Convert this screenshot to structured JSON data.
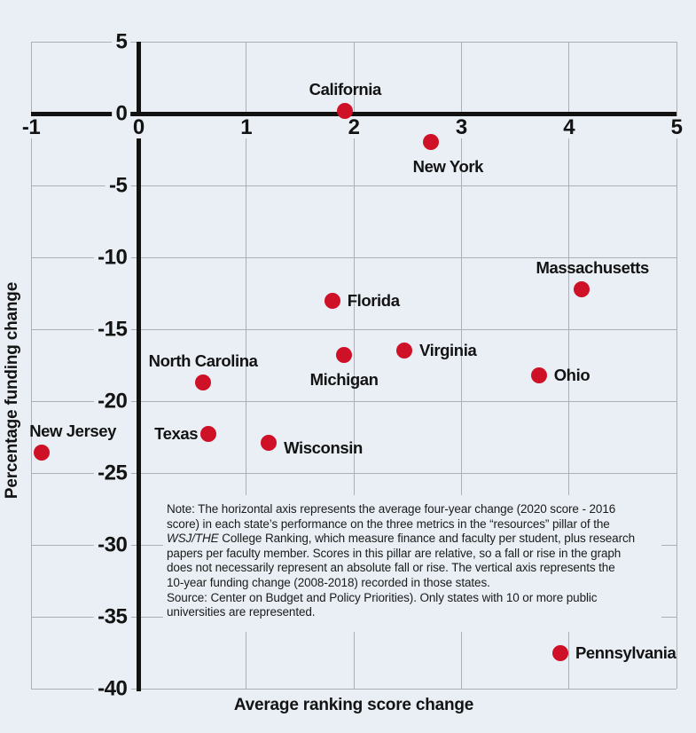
{
  "chart_data": {
    "type": "scatter",
    "title": "",
    "xlabel": "Average ranking score change",
    "ylabel": "Percentage funding change",
    "xlim": [
      -1,
      5
    ],
    "ylim": [
      -40,
      5
    ],
    "x_ticks": [
      -1,
      0,
      1,
      2,
      3,
      4,
      5
    ],
    "y_ticks": [
      5,
      0,
      -5,
      -10,
      -15,
      -20,
      -25,
      -30,
      -35,
      -40
    ],
    "grid": true,
    "legend": "none",
    "marker_shape": "circle",
    "points": [
      {
        "state": "California",
        "x": 1.92,
        "y": 0.2,
        "label_placement": "above"
      },
      {
        "state": "New York",
        "x": 2.72,
        "y": -2,
        "label_placement": "below",
        "label_dx": 19
      },
      {
        "state": "Massachusetts",
        "x": 4.12,
        "y": -12.2,
        "label_placement": "above",
        "label_dx": 12
      },
      {
        "state": "Florida",
        "x": 1.8,
        "y": -13,
        "label_placement": "right"
      },
      {
        "state": "Virginia",
        "x": 2.47,
        "y": -16.5,
        "label_placement": "right"
      },
      {
        "state": "Michigan",
        "x": 1.91,
        "y": -16.8,
        "label_placement": "below"
      },
      {
        "state": "Ohio",
        "x": 3.72,
        "y": -18.2,
        "label_placement": "right"
      },
      {
        "state": "North Carolina",
        "x": 0.6,
        "y": -18.7,
        "label_placement": "above"
      },
      {
        "state": "Texas",
        "x": 0.65,
        "y": -22.3,
        "label_placement": "left"
      },
      {
        "state": "Wisconsin",
        "x": 1.21,
        "y": -22.9,
        "label_placement": "right",
        "label_dy": 6
      },
      {
        "state": "New Jersey",
        "x": -0.9,
        "y": -23.6,
        "label_placement": "above",
        "label_dx": 35
      },
      {
        "state": "Pennsylvania",
        "x": 3.92,
        "y": -37.5,
        "label_placement": "right"
      }
    ],
    "note_lines": [
      [
        {
          "t": "Note: The horizontal axis represents the average four-year change (2020 score - 2016"
        }
      ],
      [
        {
          "t": "score) in each state’s performance on the three metrics in the “resources” pillar of the"
        }
      ],
      [
        {
          "t": "WSJ/THE",
          "i": true
        },
        {
          "t": " College Ranking, which measure finance and faculty per student, plus research"
        }
      ],
      [
        {
          "t": "papers per faculty member. Scores in this pillar are relative, so a fall or rise in the graph"
        }
      ],
      [
        {
          "t": "does not necessarily represent an absolute fall or rise. The vertical axis represents the"
        }
      ],
      [
        {
          "t": "10-year funding change (2008-2018) recorded in those states."
        }
      ],
      [
        {
          "t": "Source: Center on Budget and Policy Priorities). Only states with 10 or more public"
        }
      ],
      [
        {
          "t": "universities are represented."
        }
      ]
    ]
  },
  "colors": {
    "background": "#e9eff5",
    "gridline": "#a8b0b8",
    "axis": "#121212",
    "text": "#131313",
    "marker": "#ce1126"
  }
}
